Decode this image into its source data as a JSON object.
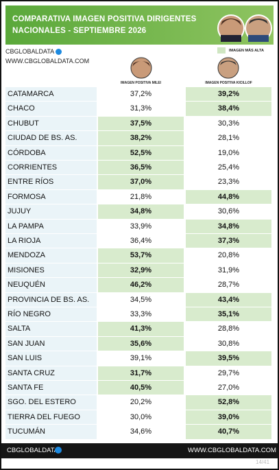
{
  "header": {
    "title_lines": [
      "COMPARATIVA IMAGEN POSITIVA DIRIGENTES",
      "NACIONALES - SEPTIEMBRE 2026"
    ]
  },
  "brand": {
    "name": "CBGLOBALDATA",
    "url": "WWW.CBGLOBALDATA.COM"
  },
  "legend": {
    "label": "IMAGEN MÁS ALTA"
  },
  "table": {
    "columns": [
      "IMAGEN POSITIVA MILEI",
      "IMAGEN POSITIVA KICILLOF"
    ],
    "rows": [
      [
        "CATAMARCA",
        "37,2%",
        "39,2%"
      ],
      [
        "CHACO",
        "31,3%",
        "38,4%"
      ],
      [
        "CHUBUT",
        "37,5%",
        "30,3%"
      ],
      [
        "CIUDAD DE BS. AS.",
        "38,2%",
        "28,1%"
      ],
      [
        "CÓRDOBA",
        "52,5%",
        "19,0%"
      ],
      [
        "CORRIENTES",
        "36,5%",
        "25,4%"
      ],
      [
        "ENTRE RÍOS",
        "37,0%",
        "23,3%"
      ],
      [
        "FORMOSA",
        "21,8%",
        "44,8%"
      ],
      [
        "JUJUY",
        "34,8%",
        "30,6%"
      ],
      [
        "LA PAMPA",
        "33,9%",
        "34,8%"
      ],
      [
        "LA RIOJA",
        "36,4%",
        "37,3%"
      ],
      [
        "MENDOZA",
        "53,7%",
        "20,8%"
      ],
      [
        "MISIONES",
        "32,9%",
        "31,9%"
      ],
      [
        "NEUQUÉN",
        "46,2%",
        "28,7%"
      ],
      [
        "PROVINCIA DE BS. AS.",
        "34,5%",
        "43,4%"
      ],
      [
        "RÍO NEGRO",
        "33,3%",
        "35,1%"
      ],
      [
        "SALTA",
        "41,3%",
        "28,8%"
      ],
      [
        "SAN JUAN",
        "35,6%",
        "30,8%"
      ],
      [
        "SAN LUIS",
        "39,1%",
        "39,5%"
      ],
      [
        "SANTA CRUZ",
        "31,7%",
        "29,7%"
      ],
      [
        "SANTA FE",
        "40,5%",
        "27,0%"
      ],
      [
        "SGO. DEL ESTERO",
        "20,2%",
        "52,8%"
      ],
      [
        "TIERRA DEL FUEGO",
        "30,0%",
        "39,0%"
      ],
      [
        "TUCUMÁN",
        "34,6%",
        "40,7%"
      ]
    ]
  },
  "footer": {
    "brand": "CBGLOBALDATA",
    "url": "WWW.CBGLOBALDATA.COM",
    "page": "14/41"
  }
}
